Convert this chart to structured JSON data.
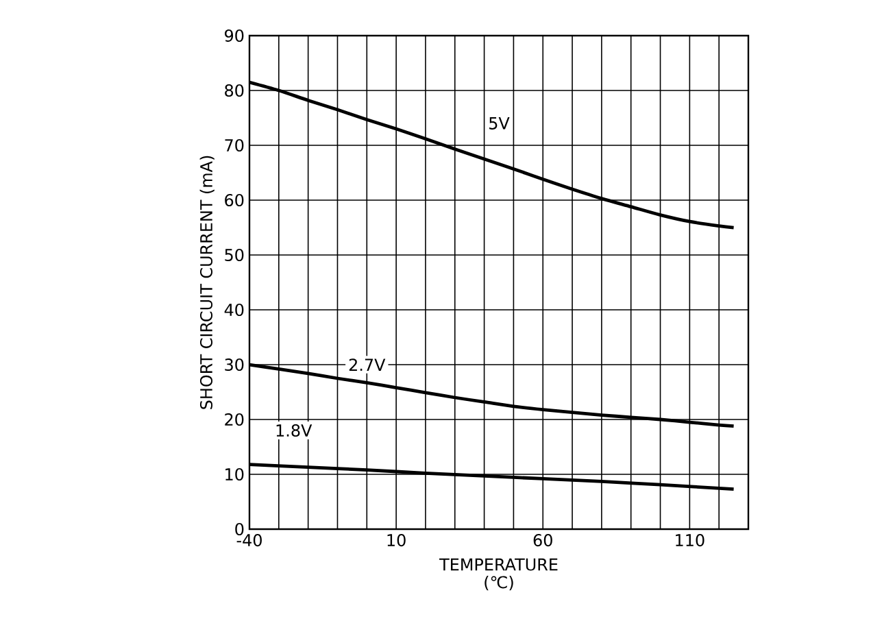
{
  "chart_data": {
    "type": "line",
    "xlabel": "TEMPERATURE (℃)",
    "ylabel": "SHORT CIRCUIT CURRENT (mA)",
    "xlim": [
      -40,
      130
    ],
    "xticks": [
      -40,
      {
        "value": -30,
        "label": null
      },
      {
        "value": -20,
        "label": null
      },
      {
        "value": -10,
        "label": null
      },
      {
        "value": 0,
        "label": null
      },
      10,
      {
        "value": 20,
        "label": null
      },
      {
        "value": 30,
        "label": null
      },
      {
        "value": 40,
        "label": null
      },
      {
        "value": 50,
        "label": null
      },
      60,
      {
        "value": 70,
        "label": null
      },
      {
        "value": 80,
        "label": null
      },
      {
        "value": 90,
        "label": null
      },
      {
        "value": 100,
        "label": null
      },
      110,
      {
        "value": 120,
        "label": null
      },
      {
        "value": 130,
        "label": null
      }
    ],
    "ylim": [
      0,
      90
    ],
    "yticks": [
      0,
      10,
      20,
      30,
      40,
      50,
      60,
      70,
      80,
      90
    ],
    "grid": true,
    "series": [
      {
        "color": "#000000",
        "x": [
          -40,
          -30,
          -20,
          -10,
          0,
          10,
          20,
          30,
          40,
          50,
          60,
          70,
          80,
          90,
          100,
          110,
          120,
          125
        ],
        "values": [
          81.5,
          80,
          78.2,
          76.5,
          74.7,
          73,
          71.2,
          69.3,
          67.5,
          65.7,
          63.8,
          62,
          60.3,
          58.8,
          57.3,
          56.1,
          55.3,
          55
        ]
      },
      {
        "color": "#000000",
        "x": [
          -40,
          -30,
          -20,
          -10,
          0,
          10,
          20,
          30,
          40,
          50,
          60,
          70,
          80,
          90,
          100,
          110,
          120,
          125
        ],
        "values": [
          30,
          29.2,
          28.4,
          27.5,
          26.7,
          25.8,
          24.9,
          24,
          23.2,
          22.4,
          21.8,
          21.3,
          20.8,
          20.4,
          20,
          19.5,
          19,
          18.8
        ]
      },
      {
        "color": "#000000",
        "x": [
          -40,
          -20,
          0,
          20,
          40,
          60,
          80,
          100,
          125
        ],
        "values": [
          11.8,
          11.3,
          10.8,
          10.2,
          9.7,
          9.2,
          8.7,
          8.1,
          7.3
        ]
      }
    ],
    "annotations": [
      {
        "text": "5V",
        "x": 45,
        "y": 74
      },
      {
        "text": "2.7V",
        "x": 0,
        "y": 30
      },
      {
        "text": "1.8V",
        "x": -25,
        "y": 18
      }
    ]
  }
}
